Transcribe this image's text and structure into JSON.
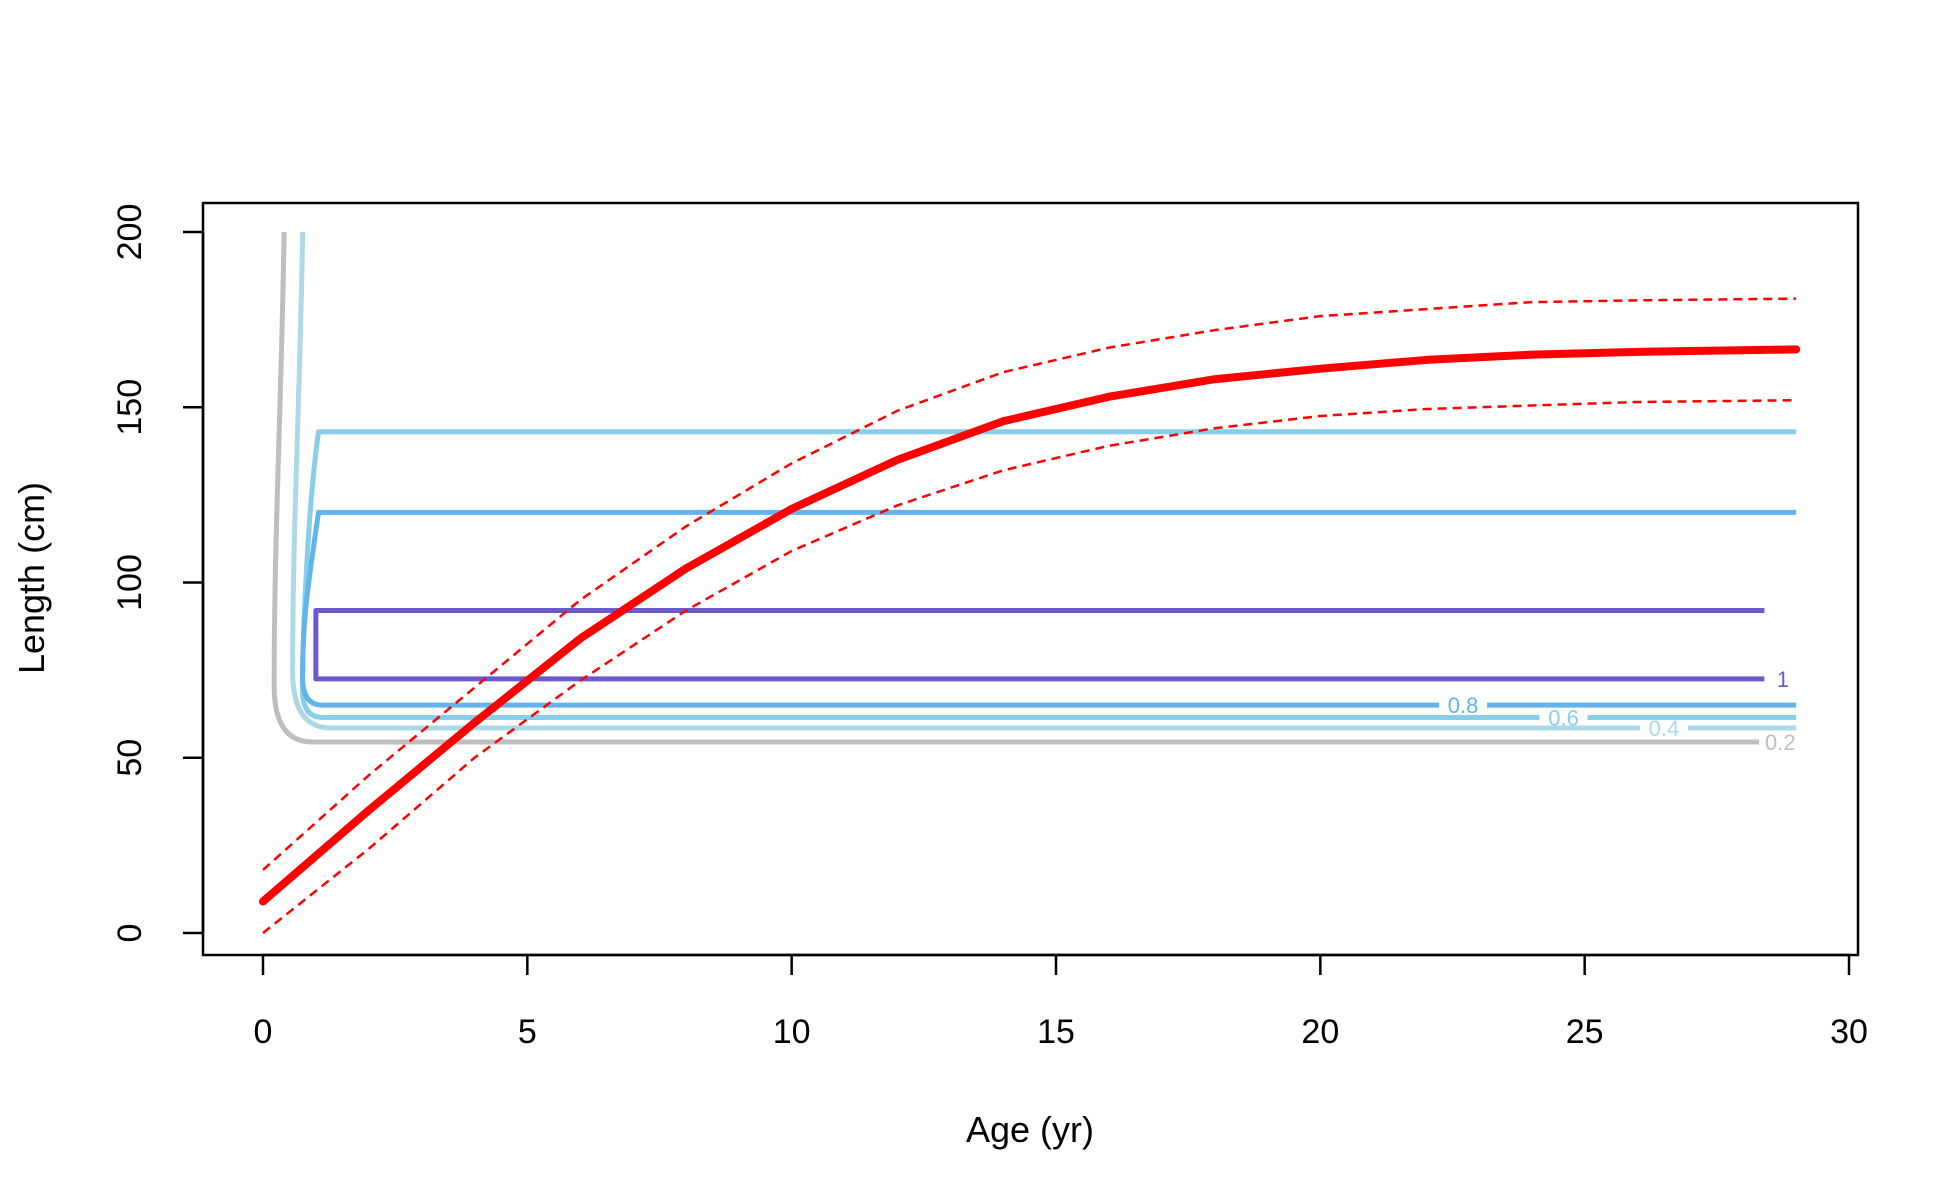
{
  "chart_data": {
    "type": "line",
    "title": "",
    "xlabel": "Age (yr)",
    "ylabel": "Length (cm)",
    "xlim": [
      0,
      30
    ],
    "ylim": [
      0,
      200
    ],
    "xticks": [
      0,
      5,
      10,
      15,
      20,
      25,
      30
    ],
    "yticks": [
      0,
      50,
      100,
      150,
      200
    ],
    "grid": false,
    "legend": "none",
    "growth_curve": {
      "color": "#ff0000",
      "x": [
        0,
        2,
        4,
        6,
        8,
        10,
        12,
        14,
        16,
        18,
        20,
        22,
        24,
        26,
        29
      ],
      "y": [
        9,
        35,
        60,
        84,
        104,
        121,
        135,
        146,
        153,
        158,
        161,
        163.5,
        165,
        165.8,
        166.5
      ]
    },
    "upper_bound": {
      "color": "#ff0000",
      "x": [
        0,
        2,
        4,
        6,
        8,
        10,
        12,
        14,
        16,
        18,
        20,
        22,
        24,
        26,
        29
      ],
      "y": [
        18,
        45,
        70,
        95,
        116,
        134,
        149,
        160,
        167,
        172,
        176,
        178,
        180,
        180.5,
        181
      ]
    },
    "lower_bound": {
      "color": "#ff0000",
      "x": [
        0,
        2,
        4,
        6,
        8,
        10,
        12,
        14,
        16,
        18,
        20,
        22,
        24,
        26,
        29
      ],
      "y": [
        0,
        24,
        50,
        72,
        92,
        109,
        122,
        132,
        139,
        144,
        147.5,
        149.5,
        150.5,
        151.5,
        152
      ]
    },
    "contours": [
      {
        "level": "0.2",
        "color": "#bebebe",
        "x_left": 0.4,
        "y_top": 200,
        "y_top2": null,
        "y_bottom": 54.5,
        "x_right": 28.3,
        "label_x": 28.7
      },
      {
        "level": "0.4",
        "color": "#add8e6",
        "x_left": 0.75,
        "y_top": 200,
        "y_top2": null,
        "y_bottom": 58.5,
        "x_right": 29,
        "label_x": 26.5
      },
      {
        "level": "0.6",
        "color": "#87ceeb",
        "x_left": 1.05,
        "y_top": 143,
        "y_top2": 143,
        "y_bottom": 61.5,
        "x_right": 29,
        "label_x": 24.6
      },
      {
        "level": "0.8",
        "color": "#63b3ed",
        "x_left": 1.05,
        "y_top": 120,
        "y_top2": 120,
        "y_bottom": 65,
        "x_right": 29,
        "label_x": 22.7
      },
      {
        "level": "1",
        "color": "#6a5acd",
        "x_left": 1.0,
        "y_top": 92,
        "y_top2": 92,
        "y_bottom": 72.5,
        "x_right": 28.4,
        "label_x": 28.75
      }
    ]
  }
}
